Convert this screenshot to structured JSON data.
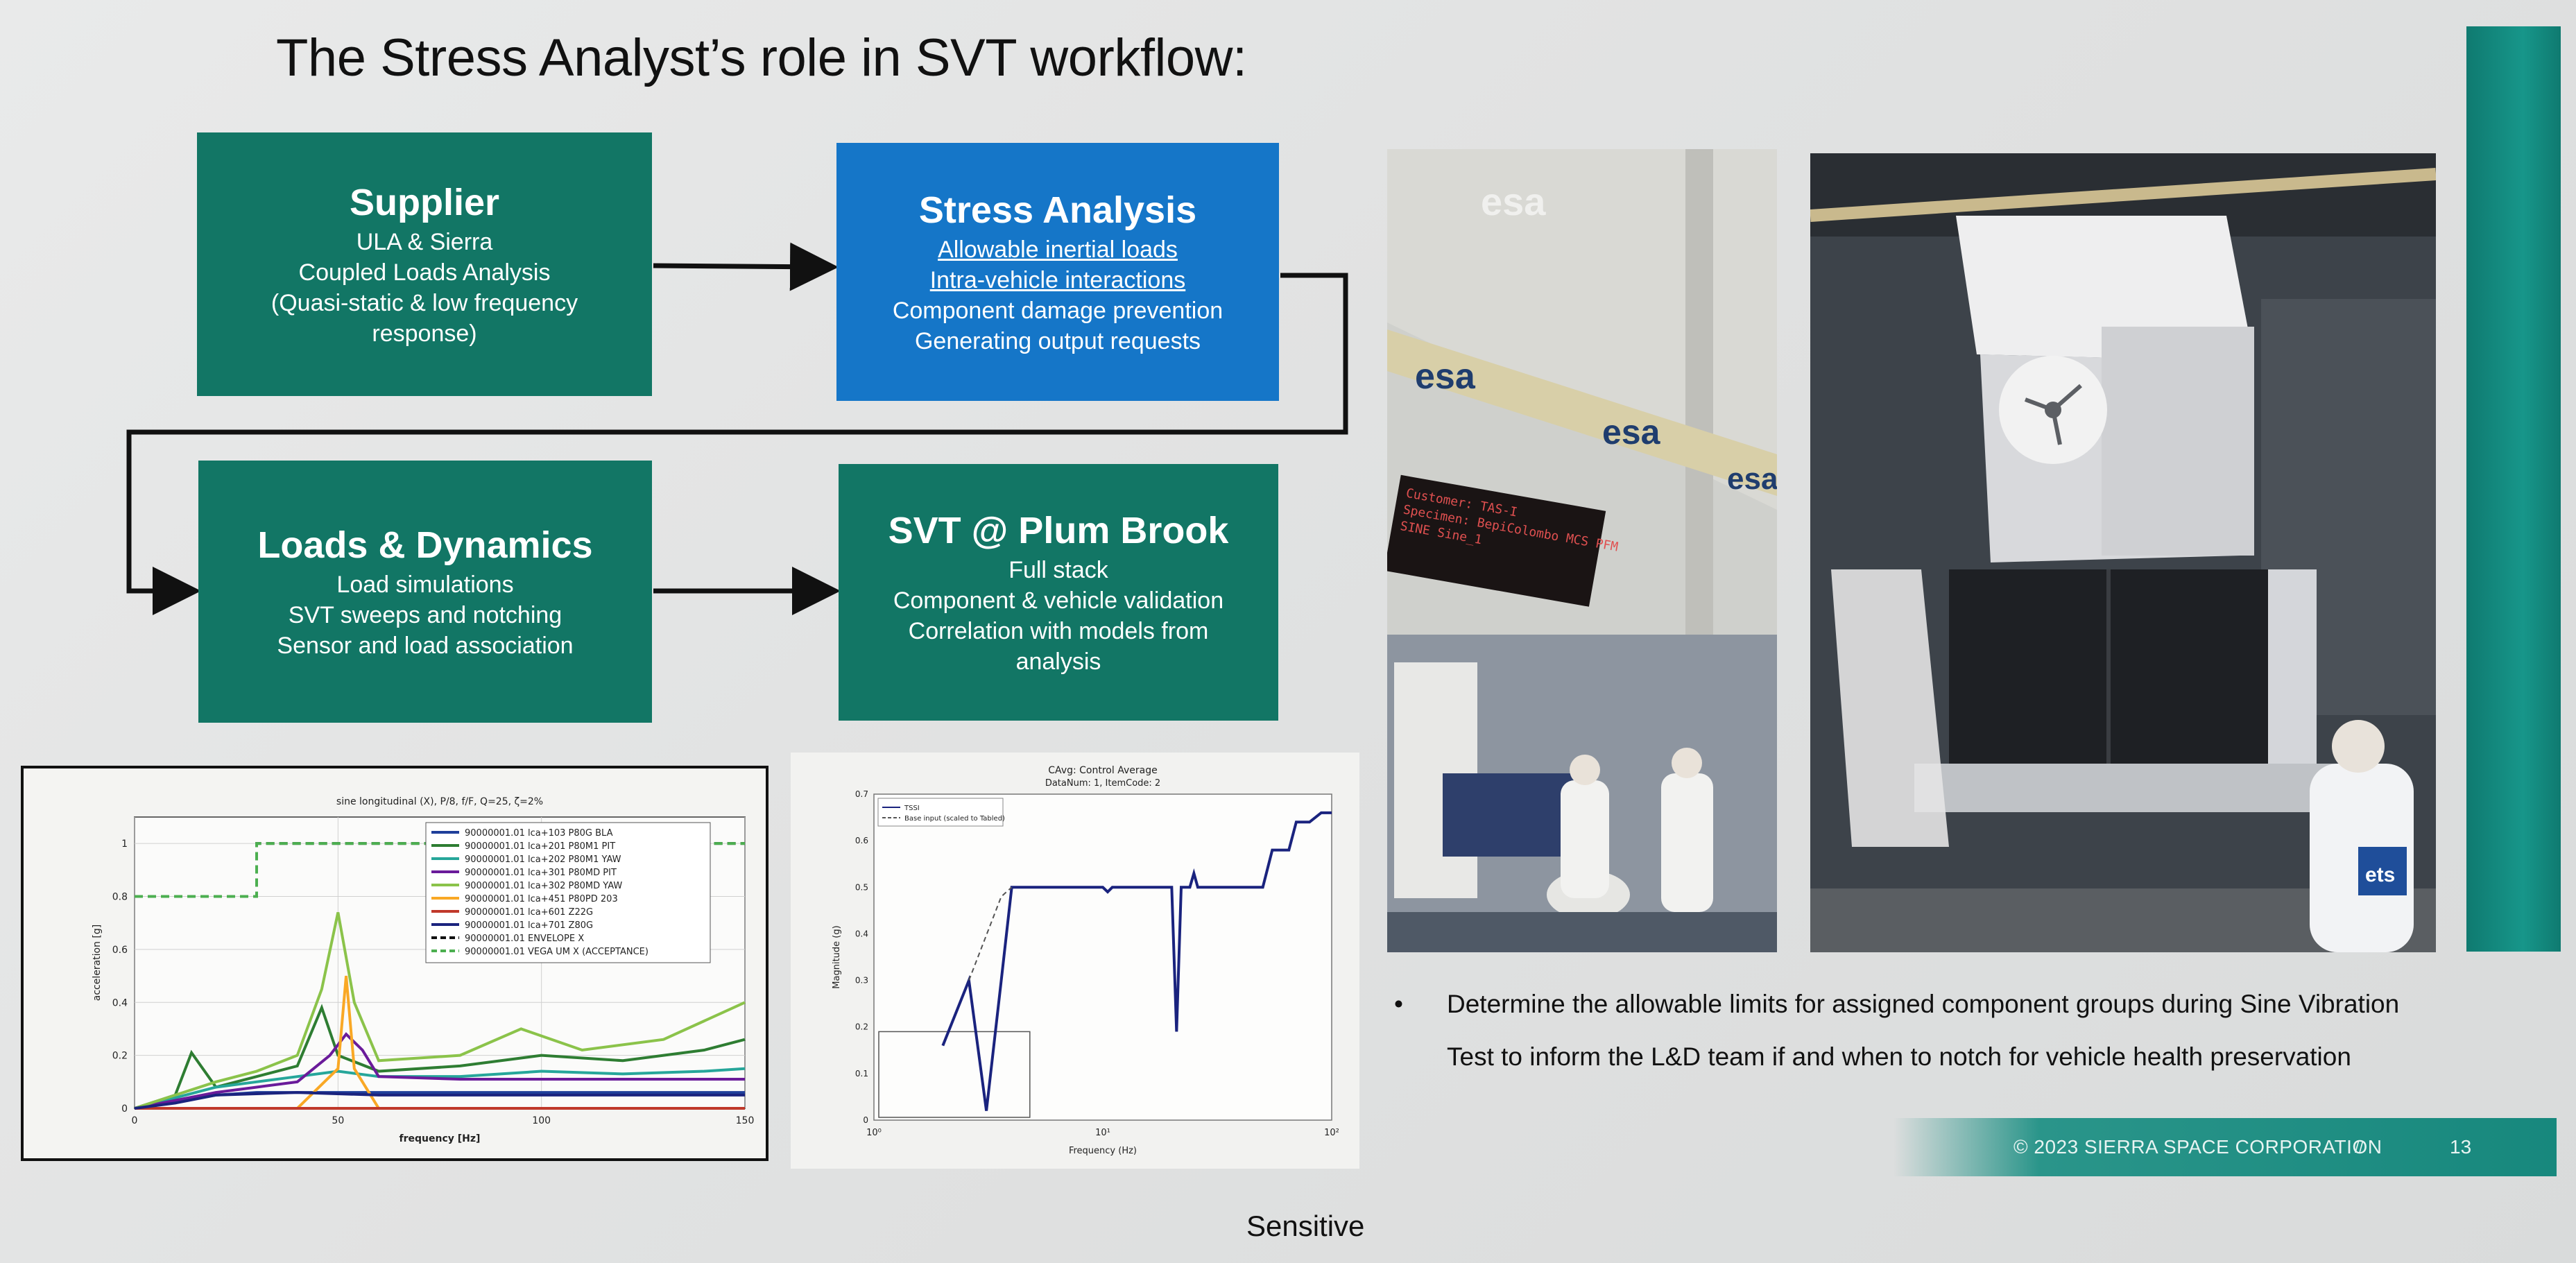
{
  "slide": {
    "title": "The Stress Analyst’s role in SVT workflow:",
    "sensitivity": "Sensitive",
    "page_number": "13",
    "copyright": "© 2023 SIERRA SPACE CORPORATION",
    "footer_separator": "//"
  },
  "workflow": {
    "supplier": {
      "heading": "Supplier",
      "lines": [
        "ULA & Sierra",
        "Coupled Loads Analysis",
        "(Quasi-static & low frequency",
        "response)"
      ]
    },
    "stress_analysis": {
      "heading": "Stress Analysis",
      "link1": "Allowable inertial loads",
      "link2": "Intra-vehicle interactions",
      "lines": [
        "Component damage prevention",
        "Generating output requests"
      ]
    },
    "loads_dynamics": {
      "heading": "Loads & Dynamics",
      "lines": [
        "Load simulations",
        "SVT sweeps and notching",
        "Sensor and load association"
      ]
    },
    "svt_plum_brook": {
      "heading": "SVT @ Plum Brook",
      "lines": [
        "Full stack",
        "Component & vehicle validation",
        "Correlation with models from",
        "analysis"
      ]
    }
  },
  "bullet": {
    "line1": "Determine the allowable limits for assigned component groups during Sine Vibration",
    "line2": "Test to inform the L&D team if and when to notch for vehicle health preservation"
  },
  "photos": {
    "left_logo_1": "esa",
    "left_logo_2": "esa",
    "left_logo_3": "esa",
    "left_logo_4": "esa",
    "display_line1": "Customer: TAS-I",
    "display_line2": "Specimen: BepiColombo MCS PFM",
    "display_line3": "SINE    Sine_1",
    "right_patch": "ets"
  },
  "colors": {
    "teal_box": "#127665",
    "blue_box": "#1576c8",
    "accent_bar": "#17968a"
  },
  "chart_data": [
    {
      "type": "line",
      "title": "sine longitudinal (X), P/8, f/F, Q=25, ζ=2%",
      "xlabel": "frequency [Hz]",
      "ylabel": "acceleration [g]",
      "xlim": [
        0,
        150
      ],
      "ylim": [
        0,
        1.1
      ],
      "x_ticks": [
        "0",
        "50",
        "100",
        "150"
      ],
      "y_ticks": [
        "0",
        "0.2",
        "0.4",
        "0.6",
        "0.8",
        "1"
      ],
      "grid": true,
      "legend_position": "top-right",
      "series": [
        {
          "name": "90000001.01 lca+103 P80G BLA",
          "color": "#1f3f9a",
          "x": [
            0,
            10,
            20,
            30,
            40,
            50,
            60,
            80,
            100,
            120,
            150
          ],
          "y": [
            0,
            0.03,
            0.05,
            0.06,
            0.06,
            0.06,
            0.06,
            0.06,
            0.06,
            0.06,
            0.06
          ]
        },
        {
          "name": "90000001.01 lca+201 P80M1 PIT",
          "color": "#2e7d32",
          "x": [
            0,
            10,
            14,
            20,
            30,
            40,
            46,
            50,
            60,
            80,
            100,
            120,
            140,
            150
          ],
          "y": [
            0,
            0.05,
            0.21,
            0.08,
            0.12,
            0.16,
            0.38,
            0.2,
            0.14,
            0.16,
            0.2,
            0.18,
            0.22,
            0.26
          ]
        },
        {
          "name": "90000001.01 lca+202 P80M1 YAW",
          "color": "#26a69a",
          "x": [
            0,
            10,
            20,
            30,
            40,
            50,
            60,
            80,
            100,
            120,
            140,
            150
          ],
          "y": [
            0,
            0.04,
            0.08,
            0.1,
            0.12,
            0.14,
            0.12,
            0.12,
            0.14,
            0.13,
            0.14,
            0.15
          ]
        },
        {
          "name": "90000001.01 lca+301 P80MD PIT",
          "color": "#6a1b9a",
          "x": [
            0,
            10,
            20,
            30,
            40,
            48,
            52,
            56,
            60,
            80,
            100,
            120,
            150
          ],
          "y": [
            0,
            0.03,
            0.06,
            0.08,
            0.1,
            0.2,
            0.28,
            0.22,
            0.12,
            0.11,
            0.11,
            0.11,
            0.11
          ]
        },
        {
          "name": "90000001.01 lca+302 P80MD YAW",
          "color": "#8bc34a",
          "x": [
            0,
            10,
            20,
            30,
            40,
            46,
            50,
            54,
            60,
            80,
            95,
            110,
            130,
            150
          ],
          "y": [
            0,
            0.05,
            0.1,
            0.14,
            0.2,
            0.45,
            0.74,
            0.4,
            0.18,
            0.2,
            0.3,
            0.22,
            0.26,
            0.4
          ]
        },
        {
          "name": "90000001.01 lca+451 P80PD 203",
          "color": "#f9a825",
          "x": [
            0,
            20,
            40,
            50,
            52,
            54,
            60,
            150
          ],
          "y": [
            0,
            0,
            0,
            0.15,
            0.5,
            0.15,
            0,
            0
          ]
        },
        {
          "name": "90000001.01 lca+601 Z22G",
          "color": "#c0392b",
          "x": [
            0,
            150
          ],
          "y": [
            0,
            0
          ]
        },
        {
          "name": "90000001.01 lca+701 Z80G",
          "color": "#1a237e",
          "x": [
            0,
            10,
            20,
            40,
            60,
            80,
            100,
            150
          ],
          "y": [
            0,
            0.02,
            0.05,
            0.06,
            0.05,
            0.05,
            0.05,
            0.05
          ]
        },
        {
          "name": "90000001.01 ENVELOPE X",
          "color": "#111111",
          "dash": true,
          "x": [
            0,
            30,
            30,
            150
          ],
          "y": [
            0.8,
            0.8,
            1.0,
            1.0
          ]
        },
        {
          "name": "90000001.01 VEGA UM X (ACCEPTANCE)",
          "color": "#4caf50",
          "dash": true,
          "x": [
            0,
            30,
            30,
            150
          ],
          "y": [
            0.8,
            0.8,
            1.0,
            1.0
          ]
        }
      ]
    },
    {
      "type": "line",
      "title": "CAvg: Control Average",
      "subtitle": "DataNum: 1, ItemCode: 2",
      "xlabel": "Frequency (Hz)",
      "ylabel": "Magnitude (g)",
      "x_scale": "log",
      "xlim": [
        1,
        100
      ],
      "ylim": [
        0,
        0.7
      ],
      "x_ticks": [
        "10⁰",
        "10¹",
        "10²"
      ],
      "y_ticks": [
        "0",
        "0.1",
        "0.2",
        "0.3",
        "0.4",
        "0.5",
        "0.6",
        "0.7"
      ],
      "legend_position": "top-left",
      "series": [
        {
          "name": "TSSI",
          "color": "#1a237e",
          "x": [
            2,
            2.6,
            3.1,
            3.6,
            4,
            10,
            10.5,
            11,
            20,
            21,
            22,
            24,
            25,
            26,
            30,
            50,
            55,
            65,
            70,
            80,
            90,
            100
          ],
          "y": [
            0.16,
            0.3,
            0.02,
            0.3,
            0.5,
            0.5,
            0.49,
            0.5,
            0.5,
            0.19,
            0.5,
            0.5,
            0.53,
            0.5,
            0.5,
            0.5,
            0.58,
            0.58,
            0.64,
            0.64,
            0.66,
            0.66
          ]
        },
        {
          "name": "Base input (scaled to Tabled)",
          "color": "#555555",
          "dash": true,
          "x": [
            2.6,
            3.6,
            4
          ],
          "y": [
            0.3,
            0.48,
            0.5
          ]
        }
      ]
    }
  ]
}
